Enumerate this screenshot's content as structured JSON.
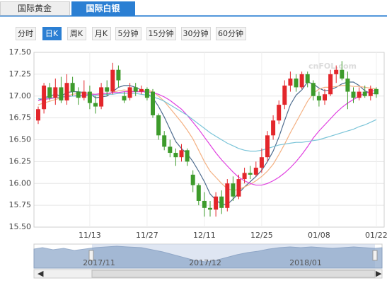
{
  "tabs": [
    "国际黄金",
    "国际白银"
  ],
  "active_tab": 1,
  "periods": [
    "分时",
    "日K",
    "周K",
    "月K",
    "5分钟",
    "15分钟",
    "30分钟",
    "60分钟"
  ],
  "active_period": 1,
  "watermark": "cnFOL.com",
  "navigator": {
    "labels": [
      "2017/11",
      "2017/12",
      "2018/01"
    ]
  },
  "chart_data": {
    "type": "candlestick",
    "categories": [
      null,
      null,
      null,
      null,
      null,
      null,
      null,
      null,
      null,
      "11/13",
      null,
      null,
      null,
      null,
      null,
      null,
      null,
      null,
      null,
      "11/27",
      null,
      null,
      null,
      null,
      null,
      null,
      null,
      null,
      null,
      "12/11",
      null,
      null,
      null,
      null,
      null,
      null,
      null,
      null,
      null,
      "12/25",
      null,
      null,
      null,
      null,
      null,
      null,
      null,
      null,
      null,
      "01/08",
      null,
      null,
      null,
      null,
      null,
      null,
      null,
      null,
      null,
      "01/22"
    ],
    "open": [
      16.72,
      16.85,
      17.1,
      16.98,
      17.1,
      16.95,
      17.15,
      17.05,
      16.98,
      17.05,
      16.92,
      16.88,
      17.1,
      17.05,
      17.3,
      17.0,
      16.98,
      17.1,
      17.05,
      17.08,
      17.05,
      16.78,
      16.55,
      16.42,
      16.35,
      16.3,
      16.38,
      16.1,
      15.98,
      15.8,
      15.72,
      15.7,
      15.85,
      15.72,
      16.0,
      15.85,
      16.05,
      16.12,
      16.1,
      16.18,
      16.3,
      16.55,
      16.72,
      16.9,
      17.12,
      17.2,
      17.1,
      17.25,
      17.15,
      17.0,
      16.95,
      17.02,
      17.25,
      17.3,
      17.2,
      17.05,
      16.98,
      17.05,
      17.0,
      17.08
    ],
    "high": [
      16.88,
      17.15,
      17.15,
      17.2,
      17.22,
      17.25,
      17.22,
      17.1,
      17.18,
      17.12,
      17.0,
      17.15,
      17.18,
      17.38,
      17.35,
      17.05,
      17.15,
      17.15,
      17.12,
      17.1,
      17.08,
      16.8,
      16.6,
      16.5,
      16.4,
      16.45,
      16.4,
      16.15,
      16.0,
      15.9,
      15.8,
      15.9,
      15.92,
      16.05,
      16.08,
      16.1,
      16.18,
      16.2,
      16.25,
      16.4,
      16.6,
      16.78,
      16.95,
      17.18,
      17.28,
      17.25,
      17.28,
      17.28,
      17.18,
      17.05,
      17.08,
      17.3,
      17.35,
      17.4,
      17.28,
      17.1,
      17.1,
      17.12,
      17.12,
      17.1
    ],
    "low": [
      16.68,
      16.8,
      16.95,
      16.9,
      16.92,
      16.9,
      17.0,
      16.9,
      16.95,
      16.85,
      16.8,
      16.85,
      17.0,
      17.02,
      17.1,
      16.92,
      16.95,
      17.0,
      17.02,
      16.95,
      16.75,
      16.5,
      16.38,
      16.3,
      16.2,
      16.25,
      16.2,
      15.9,
      15.75,
      15.62,
      15.62,
      15.62,
      15.65,
      15.68,
      15.8,
      15.82,
      16.0,
      16.05,
      16.08,
      16.12,
      16.25,
      16.5,
      16.68,
      16.85,
      17.05,
      17.05,
      17.08,
      17.1,
      16.95,
      16.88,
      16.9,
      17.0,
      17.15,
      17.18,
      16.85,
      16.92,
      16.95,
      16.98,
      16.95,
      16.98
    ],
    "close": [
      16.85,
      17.12,
      16.98,
      17.1,
      16.95,
      17.15,
      17.05,
      16.98,
      17.05,
      16.92,
      16.88,
      17.1,
      17.05,
      17.3,
      17.18,
      16.95,
      17.1,
      17.05,
      17.08,
      16.98,
      16.78,
      16.55,
      16.42,
      16.35,
      16.3,
      16.38,
      16.25,
      15.98,
      15.8,
      15.72,
      15.7,
      15.85,
      15.72,
      16.0,
      15.85,
      16.05,
      16.12,
      16.1,
      16.18,
      16.3,
      16.55,
      16.72,
      16.9,
      17.12,
      17.2,
      17.1,
      17.25,
      17.15,
      17.0,
      16.95,
      17.02,
      17.25,
      17.3,
      17.2,
      17.05,
      16.98,
      17.05,
      17.0,
      17.08,
      17.02
    ],
    "up_color": "#e3262b",
    "down_color": "#3d9b2b",
    "ma_lines": [
      {
        "color": "#4f6d8f",
        "values": [
          16.95,
          16.98,
          17.0,
          17.02,
          17.0,
          17.04,
          17.05,
          17.05,
          17.04,
          17.03,
          16.98,
          16.99,
          17.0,
          17.05,
          17.1,
          17.12,
          17.12,
          17.1,
          17.07,
          17.03,
          16.98,
          16.88,
          16.76,
          16.62,
          16.48,
          16.4,
          16.34,
          16.25,
          16.14,
          16.02,
          15.88,
          15.81,
          15.76,
          15.76,
          15.82,
          15.89,
          15.96,
          16.02,
          16.08,
          16.15,
          16.25,
          16.37,
          16.53,
          16.72,
          16.9,
          17.01,
          17.07,
          17.16,
          17.14,
          17.09,
          17.06,
          17.07,
          17.1,
          17.14,
          17.16,
          17.16,
          17.12,
          17.06,
          17.03,
          17.03
        ]
      },
      {
        "color": "#f4b183",
        "values": [
          16.9,
          16.92,
          16.94,
          16.96,
          16.98,
          17.0,
          17.02,
          17.03,
          17.03,
          17.03,
          17.02,
          17.02,
          17.02,
          17.04,
          17.06,
          17.07,
          17.06,
          17.05,
          17.06,
          17.07,
          17.05,
          17.0,
          16.94,
          16.86,
          16.78,
          16.7,
          16.61,
          16.51,
          16.38,
          16.25,
          16.14,
          16.07,
          16.0,
          15.94,
          15.92,
          15.93,
          15.96,
          15.99,
          16.03,
          16.08,
          16.14,
          16.22,
          16.33,
          16.45,
          16.58,
          16.7,
          16.82,
          16.94,
          17.03,
          17.08,
          17.1,
          17.1,
          17.11,
          17.12,
          17.12,
          17.11,
          17.11,
          17.1,
          17.09,
          17.08
        ]
      },
      {
        "color": "#e040e0",
        "values": [
          16.95,
          16.96,
          16.97,
          16.98,
          16.99,
          17.0,
          17.0,
          17.01,
          17.01,
          17.02,
          17.02,
          17.03,
          17.03,
          17.04,
          17.04,
          17.05,
          17.05,
          17.05,
          17.05,
          17.05,
          17.04,
          17.02,
          16.99,
          16.95,
          16.9,
          16.85,
          16.78,
          16.7,
          16.62,
          16.53,
          16.44,
          16.35,
          16.27,
          16.2,
          16.13,
          16.07,
          16.03,
          16.0,
          15.98,
          15.98,
          16.0,
          16.03,
          16.07,
          16.12,
          16.18,
          16.25,
          16.33,
          16.42,
          16.52,
          16.6,
          16.67,
          16.74,
          16.81,
          16.87,
          16.92,
          16.96,
          17.0,
          17.03,
          17.05,
          17.07
        ]
      },
      {
        "color": "#7ac4d8",
        "values": [
          16.97,
          16.97,
          16.98,
          16.98,
          16.99,
          16.99,
          17.0,
          17.0,
          17.0,
          17.01,
          17.01,
          17.01,
          17.02,
          17.02,
          17.03,
          17.03,
          17.03,
          17.03,
          17.02,
          17.01,
          16.99,
          16.97,
          16.94,
          16.9,
          16.86,
          16.82,
          16.78,
          16.73,
          16.68,
          16.63,
          16.58,
          16.54,
          16.5,
          16.46,
          16.43,
          16.4,
          16.38,
          16.37,
          16.37,
          16.38,
          16.4,
          16.42,
          16.44,
          16.45,
          16.46,
          16.47,
          16.47,
          16.48,
          16.49,
          16.5,
          16.52,
          16.54,
          16.56,
          16.58,
          16.6,
          16.62,
          16.65,
          16.67,
          16.7,
          16.73
        ]
      }
    ],
    "ylim": [
      15.5,
      17.5
    ],
    "yticks": [
      {
        "value": 17.5,
        "label": "17.50"
      },
      17.25,
      {
        "value": 17.0,
        "label": "17.00"
      },
      16.75,
      {
        "value": 16.5,
        "label": "16.50"
      },
      16.25,
      {
        "value": 16.0,
        "label": "16.00"
      },
      15.75,
      {
        "value": 15.5,
        "label": "15.50"
      }
    ],
    "grid": true
  }
}
